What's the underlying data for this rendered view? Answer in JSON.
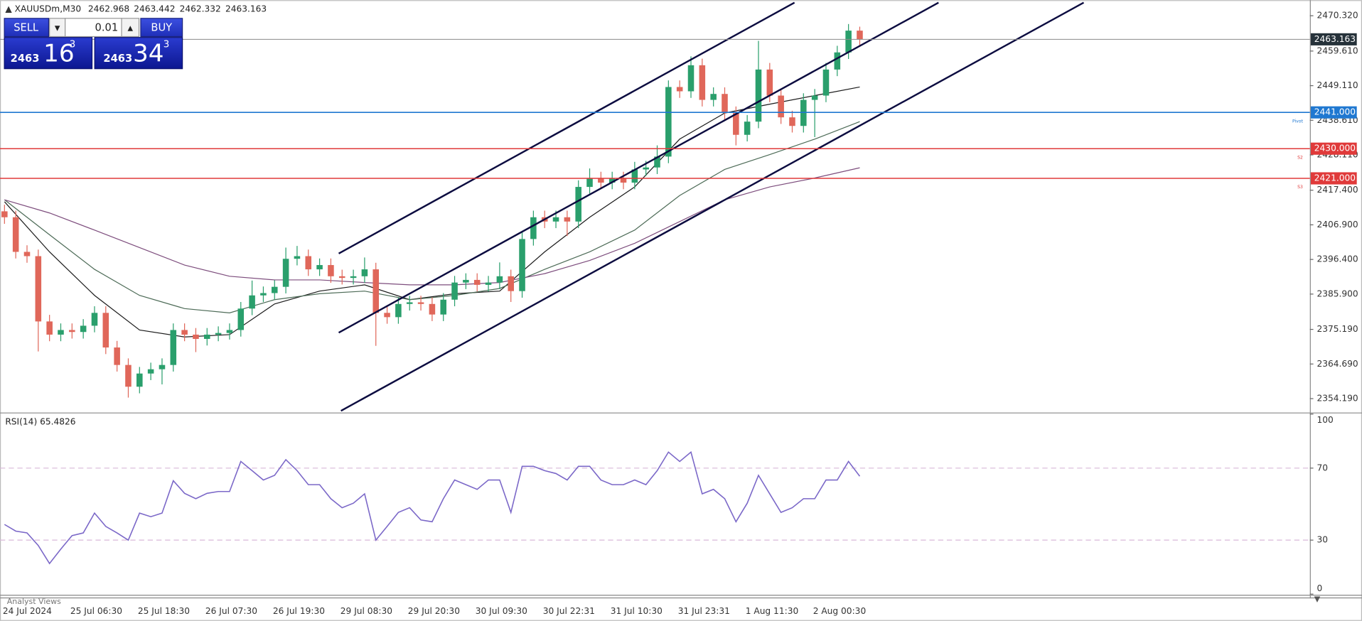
{
  "header": {
    "symbol": "XAUUSDm,M30",
    "ohlc": [
      2462.968,
      2463.442,
      2462.332,
      2463.163
    ]
  },
  "trade_panel": {
    "sell": "SELL",
    "lot": "0.01",
    "buy": "BUY",
    "bid": {
      "big": "2463",
      "main": "16",
      "small": "3"
    },
    "ask": {
      "big": "2463",
      "main": "34",
      "small": "3"
    }
  },
  "chart_data": [
    {
      "type": "candlestick",
      "categories": [
        "24 Jul 2024",
        null,
        null,
        null,
        null,
        null,
        "25 Jul 06:30",
        null,
        null,
        null,
        null,
        null,
        "25 Jul 18:30",
        null,
        null,
        null,
        null,
        null,
        "26 Jul 07:30",
        null,
        null,
        null,
        null,
        null,
        "26 Jul 19:30",
        null,
        null,
        null,
        null,
        null,
        "29 Jul 08:30",
        null,
        null,
        null,
        null,
        null,
        "29 Jul 20:30",
        null,
        null,
        null,
        null,
        null,
        "30 Jul 09:30",
        null,
        null,
        null,
        null,
        null,
        "30 Jul 22:31",
        null,
        null,
        null,
        null,
        null,
        "31 Jul 10:30",
        null,
        null,
        null,
        null,
        null,
        "31 Jul 23:31",
        null,
        null,
        null,
        null,
        null,
        "1 Aug 11:30",
        null,
        null,
        null,
        null,
        null,
        "2 Aug 00:30",
        null,
        null,
        null,
        null
      ],
      "open": [
        2411.0,
        2409.2,
        2398.7,
        2397.4,
        2377.6,
        2373.6,
        2375.0,
        2374.4,
        2376.3,
        2380.2,
        2369.7,
        2364.4,
        2357.8,
        2361.8,
        2363.1,
        2364.4,
        2375.0,
        2373.6,
        2372.3,
        2373.6,
        2374.1,
        2375.0,
        2381.5,
        2385.5,
        2386.2,
        2388.1,
        2396.6,
        2397.4,
        2393.4,
        2394.7,
        2391.3,
        2390.8,
        2391.3,
        2393.4,
        2380.2,
        2378.9,
        2382.9,
        2383.4,
        2382.9,
        2379.7,
        2384.2,
        2389.4,
        2390.2,
        2388.7,
        2389.4,
        2391.3,
        2386.8,
        2402.6,
        2409.2,
        2407.9,
        2409.2,
        2407.9,
        2418.4,
        2421.0,
        2419.7,
        2421.0,
        2419.7,
        2423.7,
        2424.3,
        2427.6,
        2448.7,
        2447.4,
        2455.3,
        2444.8,
        2446.6,
        2440.8,
        2434.2,
        2438.2,
        2454.0,
        2446.1,
        2439.5,
        2436.9,
        2444.8,
        2446.1,
        2454.0,
        2459.2,
        2465.8
      ],
      "high": [
        2413.0,
        2411.2,
        2400.7,
        2399.4,
        2379.6,
        2377.0,
        2377.0,
        2378.3,
        2382.2,
        2382.2,
        2371.7,
        2366.4,
        2363.8,
        2365.1,
        2366.4,
        2377.0,
        2377.0,
        2375.6,
        2375.6,
        2376.1,
        2377.0,
        2383.5,
        2390.0,
        2388.2,
        2390.1,
        2400.0,
        2400.5,
        2399.4,
        2396.7,
        2396.7,
        2393.3,
        2393.3,
        2397.0,
        2395.4,
        2382.2,
        2384.9,
        2385.4,
        2385.4,
        2384.9,
        2386.2,
        2391.4,
        2392.2,
        2392.2,
        2391.4,
        2395.5,
        2393.3,
        2404.6,
        2411.2,
        2411.2,
        2411.2,
        2411.2,
        2420.4,
        2424.0,
        2423.0,
        2423.0,
        2423.0,
        2426.0,
        2426.3,
        2431.0,
        2450.7,
        2450.7,
        2458.0,
        2457.3,
        2448.6,
        2448.6,
        2442.8,
        2440.2,
        2462.7,
        2456.0,
        2448.1,
        2441.5,
        2446.8,
        2448.1,
        2456.0,
        2461.2,
        2467.8,
        2467.0
      ],
      "low": [
        2407.2,
        2396.7,
        2395.4,
        2368.5,
        2371.6,
        2371.6,
        2372.4,
        2372.4,
        2374.3,
        2367.7,
        2362.4,
        2354.5,
        2355.8,
        2359.8,
        2358.5,
        2362.4,
        2371.6,
        2368.3,
        2370.3,
        2371.6,
        2372.1,
        2373.0,
        2379.5,
        2383.5,
        2384.2,
        2386.1,
        2394.6,
        2391.4,
        2391.4,
        2389.3,
        2388.8,
        2388.8,
        2389.3,
        2370.2,
        2376.9,
        2376.9,
        2380.9,
        2380.9,
        2377.7,
        2377.7,
        2382.2,
        2387.4,
        2386.7,
        2386.7,
        2387.4,
        2383.5,
        2384.8,
        2400.6,
        2405.9,
        2405.9,
        2403.5,
        2405.9,
        2416.4,
        2417.7,
        2417.7,
        2417.7,
        2417.7,
        2421.7,
        2422.3,
        2425.6,
        2445.4,
        2445.4,
        2442.8,
        2442.8,
        2438.8,
        2431.0,
        2432.2,
        2436.2,
        2444.1,
        2437.5,
        2434.9,
        2434.9,
        2433.5,
        2444.1,
        2452.0,
        2457.2,
        2461.2
      ],
      "close": [
        2409.2,
        2398.7,
        2397.4,
        2377.6,
        2373.6,
        2375.0,
        2374.4,
        2376.3,
        2380.2,
        2369.7,
        2364.4,
        2357.8,
        2361.8,
        2363.1,
        2364.4,
        2375.0,
        2373.6,
        2372.3,
        2373.6,
        2374.1,
        2375.0,
        2381.5,
        2385.5,
        2386.2,
        2388.1,
        2396.6,
        2397.4,
        2393.4,
        2394.7,
        2391.3,
        2390.8,
        2391.3,
        2393.4,
        2380.2,
        2378.9,
        2382.9,
        2383.4,
        2382.9,
        2379.7,
        2384.2,
        2389.4,
        2390.2,
        2388.7,
        2389.4,
        2391.3,
        2386.8,
        2402.6,
        2409.2,
        2407.9,
        2409.2,
        2407.9,
        2418.4,
        2421.0,
        2419.7,
        2421.0,
        2419.7,
        2423.7,
        2424.3,
        2427.6,
        2448.7,
        2447.4,
        2455.3,
        2444.8,
        2446.6,
        2440.8,
        2434.2,
        2438.2,
        2454.0,
        2446.1,
        2439.5,
        2436.9,
        2444.8,
        2446.1,
        2454.0,
        2459.2,
        2465.8,
        2463.2
      ],
      "up_color": "#2a9f6c",
      "down_color": "#e0675a",
      "xlim": [
        -0.4,
        116
      ],
      "ylim": [
        2350.24,
        2474.53
      ],
      "yticks": [
        {
          "value": 2470.32,
          "label": "2470.320"
        },
        {
          "value": 2459.61,
          "label": "2459.610"
        },
        {
          "value": 2449.11,
          "label": "2449.110"
        },
        {
          "value": 2438.61,
          "label": "2438.610"
        },
        {
          "value": 2428.11,
          "label": "2428.110"
        },
        {
          "value": 2417.4,
          "label": "2417.400"
        },
        {
          "value": 2406.9,
          "label": "2406.900"
        },
        {
          "value": 2396.4,
          "label": "2396.400"
        },
        {
          "value": 2385.9,
          "label": "2385.900"
        },
        {
          "value": 2375.19,
          "label": "2375.190"
        },
        {
          "value": 2364.69,
          "label": "2364.690"
        },
        {
          "value": 2354.19,
          "label": "2354.190"
        }
      ],
      "moving_averages": [
        {
          "color": "#1c1c1c",
          "x": [
            0,
            4,
            8,
            12,
            16,
            20,
            24,
            28,
            32,
            36,
            40,
            44,
            48,
            52,
            56,
            60,
            64,
            68,
            72,
            76
          ],
          "values": [
            2413.9,
            2398.7,
            2385.5,
            2375.0,
            2372.9,
            2373.6,
            2382.9,
            2386.8,
            2388.7,
            2384.2,
            2386.0,
            2386.8,
            2398.7,
            2409.2,
            2418.4,
            2432.9,
            2440.8,
            2443.5,
            2446.1,
            2448.7
          ]
        },
        {
          "color": "#4d6b57",
          "x": [
            0,
            4,
            8,
            12,
            16,
            20,
            24,
            28,
            32,
            36,
            40,
            44,
            48,
            52,
            56,
            60,
            64,
            68,
            72,
            76
          ],
          "values": [
            2414.5,
            2403.9,
            2393.4,
            2385.5,
            2381.5,
            2380.2,
            2384.2,
            2386.0,
            2386.8,
            2384.2,
            2385.5,
            2387.6,
            2393.4,
            2398.7,
            2405.3,
            2415.8,
            2423.7,
            2428.2,
            2432.9,
            2438.2
          ]
        },
        {
          "color": "#7d4d7d",
          "x": [
            0,
            4,
            8,
            12,
            16,
            20,
            24,
            28,
            32,
            36,
            40,
            44,
            48,
            52,
            56,
            60,
            64,
            68,
            72,
            76
          ],
          "values": [
            2414.5,
            2410.5,
            2405.3,
            2400.0,
            2394.7,
            2391.3,
            2390.2,
            2390.2,
            2389.4,
            2388.7,
            2388.7,
            2389.4,
            2392.1,
            2396.1,
            2401.3,
            2407.9,
            2414.5,
            2418.4,
            2421.1,
            2424.2
          ]
        }
      ],
      "channels": [
        {
          "color": "#0c0c40",
          "x": [
            29.7,
            70.2
          ],
          "values": [
            2398.2,
            2474.3
          ]
        },
        {
          "color": "#0c0c40",
          "x": [
            29.7,
            83.0
          ],
          "values": [
            2374.2,
            2474.3
          ]
        },
        {
          "color": "#0c0c40",
          "x": [
            29.9,
            95.9
          ],
          "values": [
            2350.5,
            2474.3
          ]
        }
      ],
      "levels": [
        {
          "name": "Pivot",
          "value": 2441,
          "label": "2441.000",
          "color": "#1f78d1"
        },
        {
          "name": "S2",
          "value": 2430,
          "label": "2430.000",
          "color": "#e03a3a"
        },
        {
          "name": "S3",
          "value": 2421,
          "label": "2421.000",
          "color": "#e03a3a"
        }
      ],
      "current_price": {
        "value": 2463.163,
        "label": "2463.163",
        "color": "#8a8a8a"
      }
    },
    {
      "type": "line",
      "title": "RSI(14) 65.4826",
      "color": "#7b68c8",
      "values": [
        38.7,
        35,
        34,
        27,
        17,
        25,
        32.5,
        34,
        45,
        37.6,
        34,
        30,
        45,
        43,
        45,
        63,
        56,
        53,
        56,
        57,
        57,
        73.7,
        68.6,
        63.4,
        66,
        74.7,
        68.6,
        60.8,
        60.8,
        53,
        48,
        50.5,
        55.7,
        30,
        37.6,
        45.4,
        48,
        41.2,
        40.2,
        53,
        63.4,
        60.8,
        58.2,
        63.4,
        63.4,
        45.4,
        71,
        71,
        68.6,
        67,
        63.4,
        71,
        71,
        63.4,
        60.8,
        60.8,
        63.4,
        60.8,
        68.6,
        78.9,
        73.7,
        78.9,
        55.7,
        58.2,
        53,
        40.2,
        50.5,
        66,
        55.7,
        45.4,
        48,
        53,
        53,
        63.4,
        63.4,
        73.7,
        65.4826
      ],
      "xlim": [
        -0.4,
        116
      ],
      "ylim": [
        -0.4,
        100.4
      ],
      "yticks": [
        0,
        30,
        70,
        100
      ],
      "levels": [
        30,
        70
      ]
    }
  ],
  "footer_tab": "Analyst Views"
}
